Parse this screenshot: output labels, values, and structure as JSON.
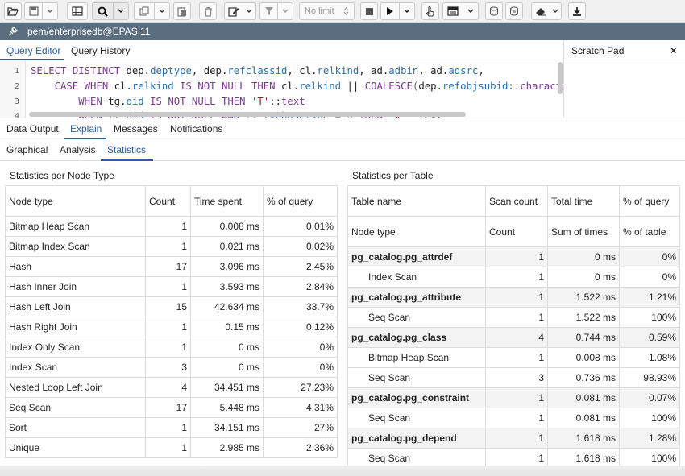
{
  "toolbar": {
    "limit_label": "No limit"
  },
  "connection": {
    "label": "pem/enterprisedb@EPAS 11"
  },
  "editor_tabs": [
    "Query Editor",
    "Query History"
  ],
  "scratch_pad": {
    "title": "Scratch Pad",
    "close": "×"
  },
  "code": {
    "line_numbers": [
      "1",
      "2",
      "3",
      "4"
    ]
  },
  "output_tabs": [
    "Data Output",
    "Explain",
    "Messages",
    "Notifications"
  ],
  "sub_tabs": [
    "Graphical",
    "Analysis",
    "Statistics"
  ],
  "node_stats": {
    "title": "Statistics per Node Type",
    "headers": [
      "Node type",
      "Count",
      "Time spent",
      "% of query"
    ],
    "rows": [
      [
        "Bitmap Heap Scan",
        "1",
        "0.008 ms",
        "0.01%"
      ],
      [
        "Bitmap Index Scan",
        "1",
        "0.021 ms",
        "0.02%"
      ],
      [
        "Hash",
        "17",
        "3.096 ms",
        "2.45%"
      ],
      [
        "Hash Inner Join",
        "1",
        "3.593 ms",
        "2.84%"
      ],
      [
        "Hash Left Join",
        "15",
        "42.634 ms",
        "33.7%"
      ],
      [
        "Hash Right Join",
        "1",
        "0.15 ms",
        "0.12%"
      ],
      [
        "Index Only Scan",
        "1",
        "0 ms",
        "0%"
      ],
      [
        "Index Scan",
        "3",
        "0 ms",
        "0%"
      ],
      [
        "Nested Loop Left Join",
        "4",
        "34.451 ms",
        "27.23%"
      ],
      [
        "Seq Scan",
        "17",
        "5.448 ms",
        "4.31%"
      ],
      [
        "Sort",
        "1",
        "34.151 ms",
        "27%"
      ],
      [
        "Unique",
        "1",
        "2.985 ms",
        "2.36%"
      ]
    ]
  },
  "table_stats": {
    "title": "Statistics per Table",
    "headers": [
      "Table name",
      "Scan count",
      "Total time",
      "% of query"
    ],
    "subheaders": [
      "Node type",
      "Count",
      "Sum of times",
      "% of table"
    ],
    "rows": [
      {
        "group": true,
        "cells": [
          "pg_catalog.pg_attrdef",
          "1",
          "0 ms",
          "0%"
        ]
      },
      {
        "group": false,
        "cells": [
          "Index Scan",
          "1",
          "0 ms",
          "0%"
        ]
      },
      {
        "group": true,
        "cells": [
          "pg_catalog.pg_attribute",
          "1",
          "1.522 ms",
          "1.21%"
        ]
      },
      {
        "group": false,
        "cells": [
          "Seq Scan",
          "1",
          "1.522 ms",
          "100%"
        ]
      },
      {
        "group": true,
        "cells": [
          "pg_catalog.pg_class",
          "4",
          "0.744 ms",
          "0.59%"
        ]
      },
      {
        "group": false,
        "cells": [
          "Bitmap Heap Scan",
          "1",
          "0.008 ms",
          "1.08%"
        ]
      },
      {
        "group": false,
        "cells": [
          "Seq Scan",
          "3",
          "0.736 ms",
          "98.93%"
        ]
      },
      {
        "group": true,
        "cells": [
          "pg_catalog.pg_constraint",
          "1",
          "0.081 ms",
          "0.07%"
        ]
      },
      {
        "group": false,
        "cells": [
          "Seq Scan",
          "1",
          "0.081 ms",
          "100%"
        ]
      },
      {
        "group": true,
        "cells": [
          "pg_catalog.pg_depend",
          "1",
          "1.618 ms",
          "1.28%"
        ]
      },
      {
        "group": false,
        "cells": [
          "Seq Scan",
          "1",
          "1.618 ms",
          "100%"
        ]
      }
    ]
  },
  "colors": {
    "accent": "#2c5da0",
    "connection_bar": "#5b6e80",
    "keyword": "#7a3b8f",
    "field": "#2a6fb0",
    "string": "#b22222"
  }
}
